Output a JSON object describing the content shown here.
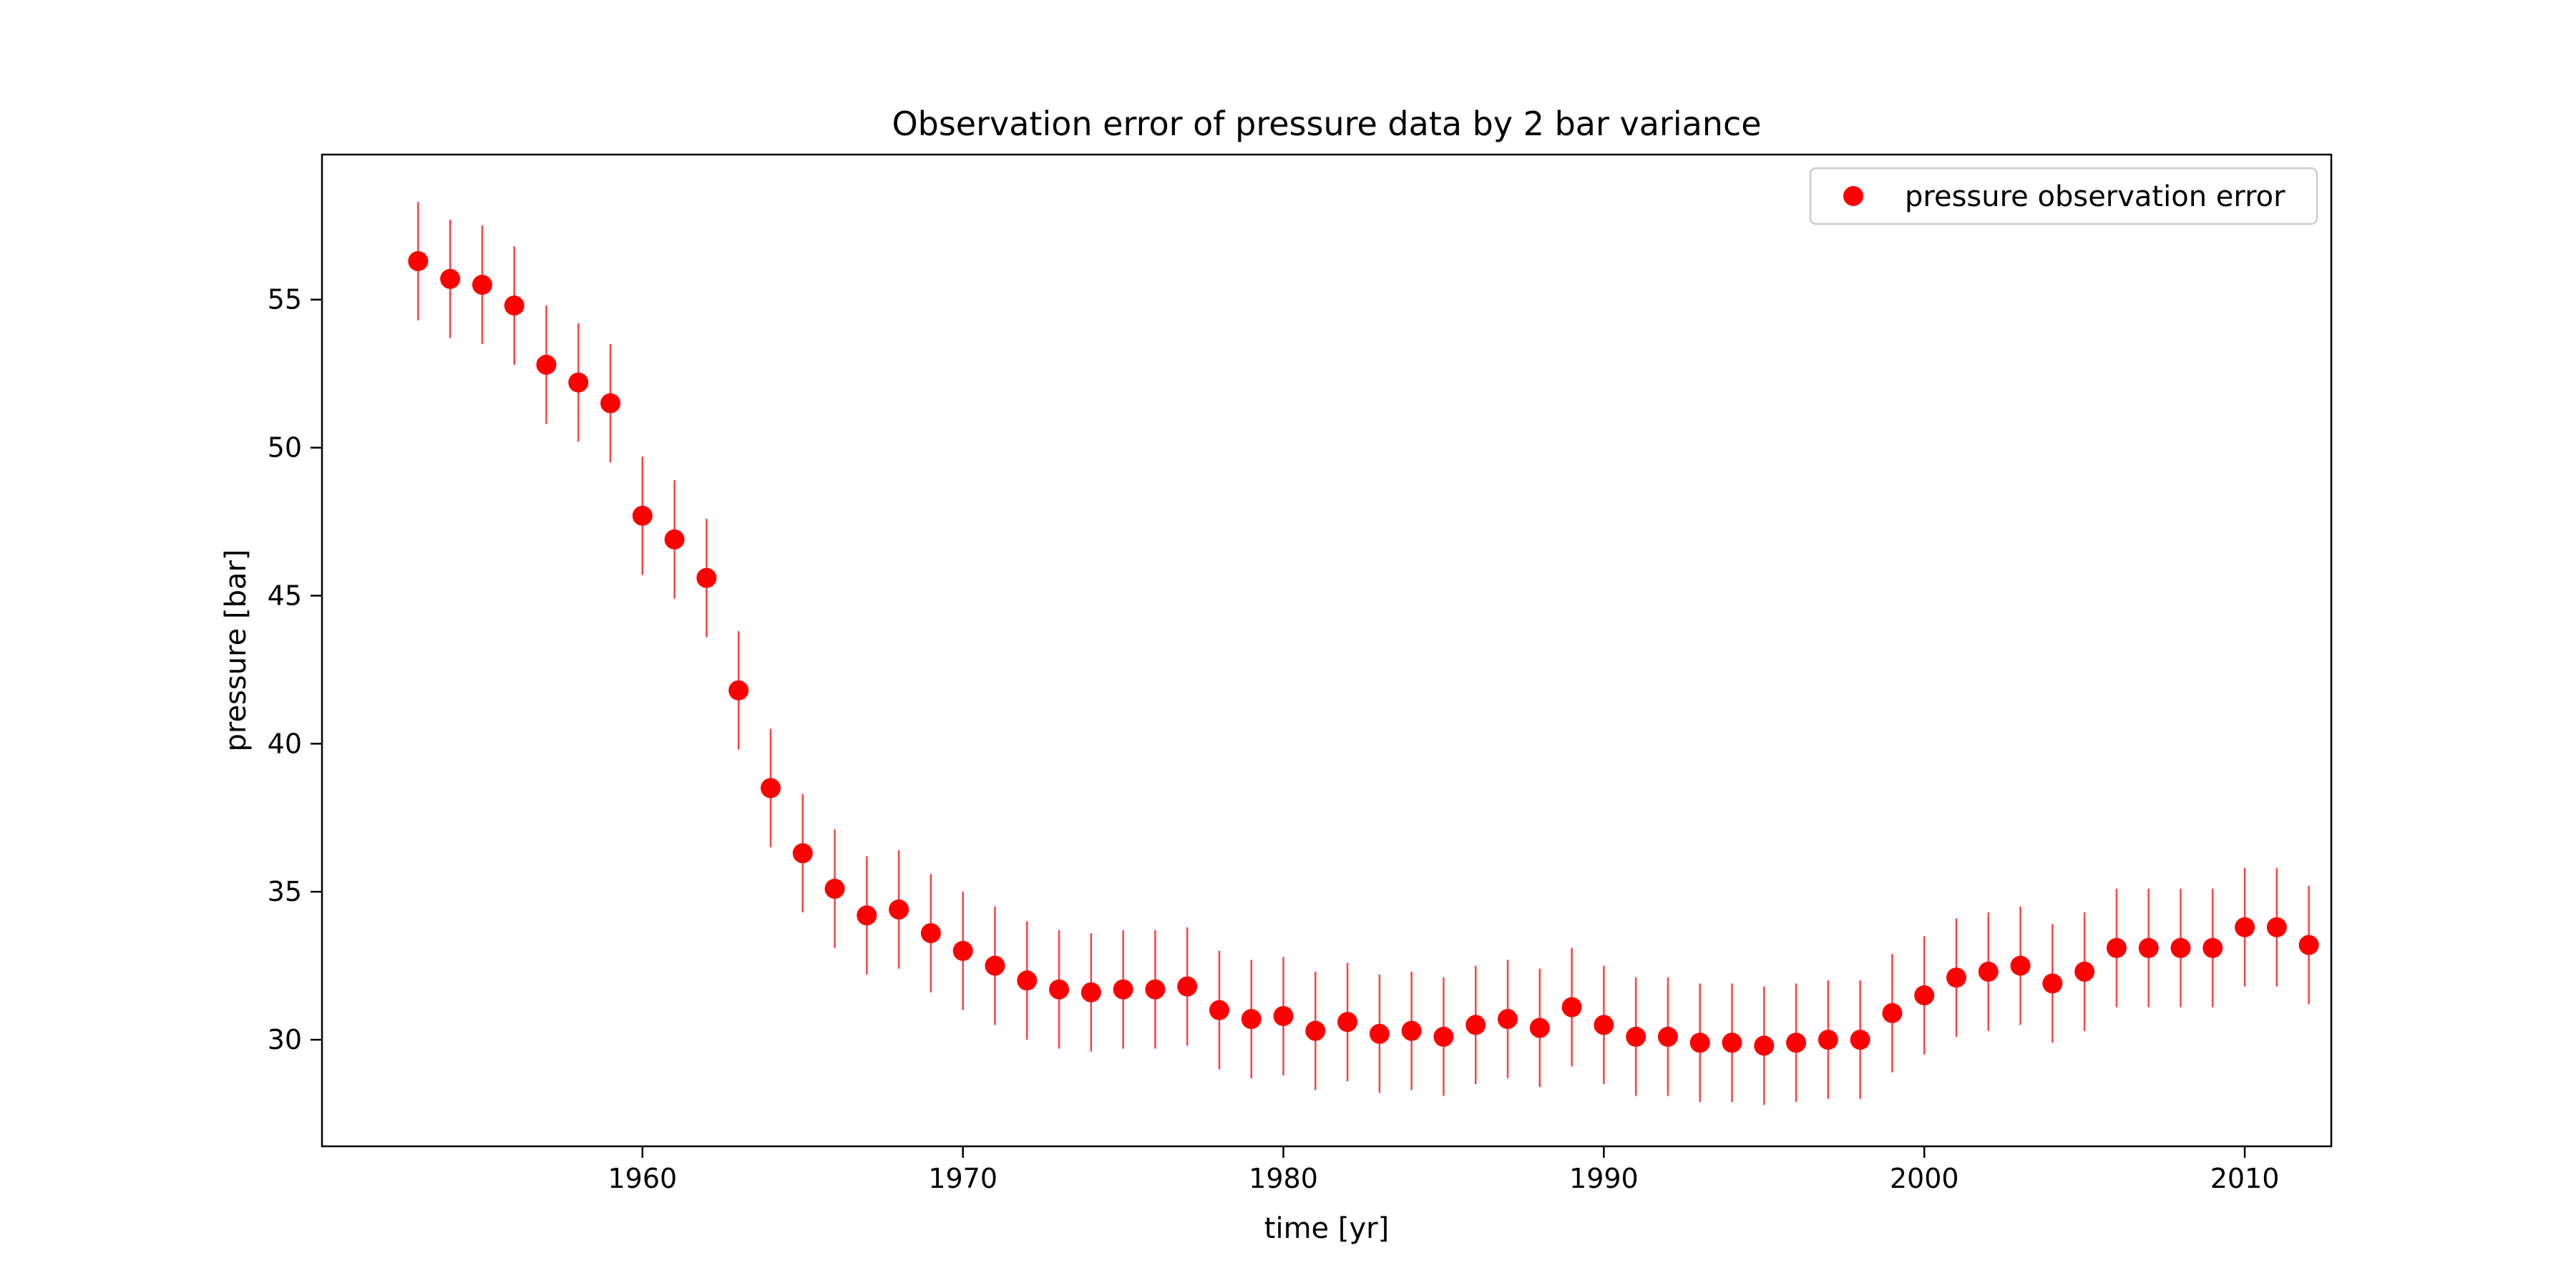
{
  "chart_data": {
    "type": "scatter",
    "title": "Observation error of pressure data by 2 bar variance",
    "xlabel": "time [yr]",
    "ylabel": "pressure [bar]",
    "xlim": [
      1950.0,
      2012.7
    ],
    "ylim": [
      26.4,
      59.9
    ],
    "xticks": [
      1960,
      1970,
      1980,
      1990,
      2000,
      2010
    ],
    "yticks": [
      30,
      35,
      40,
      45,
      50,
      55
    ],
    "grid": false,
    "legend": {
      "position": "top-right",
      "entries": [
        "pressure observation error"
      ]
    },
    "color": "#ff0000",
    "error": 2,
    "series": [
      {
        "name": "pressure observation error",
        "x": [
          1953,
          1954,
          1955,
          1956,
          1957,
          1958,
          1959,
          1960,
          1961,
          1962,
          1963,
          1964,
          1965,
          1966,
          1967,
          1968,
          1969,
          1970,
          1971,
          1972,
          1973,
          1974,
          1975,
          1976,
          1977,
          1978,
          1979,
          1980,
          1981,
          1982,
          1983,
          1984,
          1985,
          1986,
          1987,
          1988,
          1989,
          1990,
          1991,
          1992,
          1993,
          1994,
          1995,
          1996,
          1997,
          1998,
          1999,
          2000,
          2001,
          2002,
          2003,
          2004,
          2005,
          2006,
          2007,
          2008,
          2009,
          2010,
          2011,
          2012
        ],
        "y": [
          56.3,
          55.7,
          55.5,
          54.8,
          52.8,
          52.2,
          51.5,
          47.7,
          46.9,
          45.6,
          41.8,
          38.5,
          36.3,
          35.1,
          34.2,
          34.4,
          33.6,
          33.0,
          32.5,
          32.0,
          31.7,
          31.6,
          31.7,
          31.7,
          31.8,
          31.0,
          30.7,
          30.8,
          30.3,
          30.6,
          30.2,
          30.3,
          30.1,
          30.5,
          30.7,
          30.4,
          31.1,
          30.5,
          30.1,
          30.1,
          29.9,
          29.9,
          29.8,
          29.9,
          30.0,
          30.0,
          30.9,
          31.5,
          32.1,
          32.3,
          32.5,
          31.9,
          32.3,
          33.1,
          33.1,
          33.1,
          33.1,
          33.8,
          33.8,
          33.2
        ]
      }
    ]
  }
}
